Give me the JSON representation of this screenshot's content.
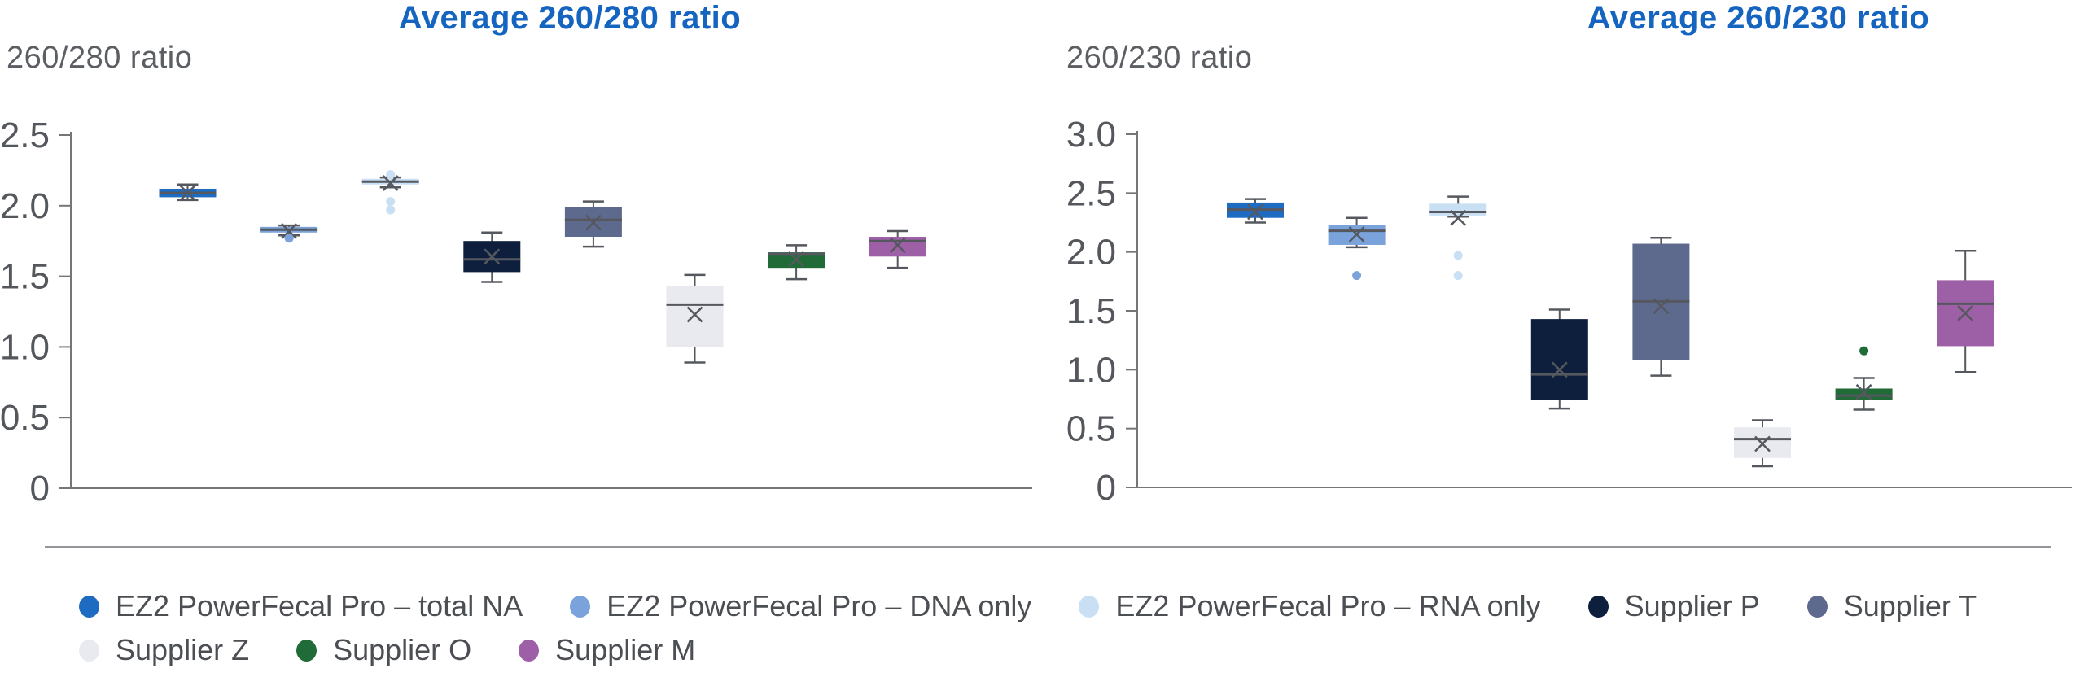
{
  "charts_header": {
    "left_title": "Average 260/280 ratio",
    "right_title": "Average 260/230 ratio"
  },
  "chart_data": [
    {
      "type": "boxplot",
      "title": "Average 260/280 ratio",
      "ylabel": "260/280 ratio",
      "ylim": [
        0,
        2.5
      ],
      "yticks": [
        2.5,
        2.0,
        1.5,
        1.0,
        0.5,
        0
      ],
      "ytick_labels": [
        "2.5",
        "2.0",
        "1.5",
        "1.0",
        "0.5",
        "0"
      ],
      "grid": false,
      "series": [
        {
          "name": "EZ2 PowerFecal Pro – total NA",
          "color": "#1e6bc2",
          "whisker_low": 2.04,
          "q1": 2.06,
          "median": 2.09,
          "q3": 2.12,
          "whisker_high": 2.15,
          "mean": 2.09,
          "outliers": []
        },
        {
          "name": "EZ2 PowerFecal Pro – DNA only",
          "color": "#7aa3dc",
          "whisker_low": 1.79,
          "q1": 1.81,
          "median": 1.83,
          "q3": 1.85,
          "whisker_high": 1.86,
          "mean": 1.82,
          "outliers": [
            1.77
          ]
        },
        {
          "name": "EZ2 PowerFecal Pro – RNA only",
          "color": "#c9dff3",
          "whisker_low": 2.13,
          "q1": 2.15,
          "median": 2.17,
          "q3": 2.19,
          "whisker_high": 2.2,
          "mean": 2.16,
          "outliers": [
            2.22,
            2.03,
            1.97
          ]
        },
        {
          "name": "Supplier P",
          "color": "#0d1f3d",
          "whisker_low": 1.46,
          "q1": 1.53,
          "median": 1.62,
          "q3": 1.75,
          "whisker_high": 1.81,
          "mean": 1.64,
          "outliers": []
        },
        {
          "name": "Supplier T",
          "color": "#5d6a8d",
          "whisker_low": 1.71,
          "q1": 1.78,
          "median": 1.9,
          "q3": 1.99,
          "whisker_high": 2.03,
          "mean": 1.88,
          "outliers": []
        },
        {
          "name": "Supplier Z",
          "color": "#e8eaef",
          "whisker_low": 0.89,
          "q1": 1.0,
          "median": 1.3,
          "q3": 1.43,
          "whisker_high": 1.51,
          "mean": 1.23,
          "outliers": []
        },
        {
          "name": "Supplier O",
          "color": "#206b38",
          "whisker_low": 1.48,
          "q1": 1.56,
          "median": 1.66,
          "q3": 1.67,
          "whisker_high": 1.72,
          "mean": 1.62,
          "outliers": []
        },
        {
          "name": "Supplier M",
          "color": "#9d5fa6",
          "whisker_low": 1.56,
          "q1": 1.64,
          "median": 1.75,
          "q3": 1.78,
          "whisker_high": 1.82,
          "mean": 1.72,
          "outliers": []
        }
      ]
    },
    {
      "type": "boxplot",
      "title": "Average 260/230 ratio",
      "ylabel": "260/230 ratio",
      "ylim": [
        0,
        3.0
      ],
      "yticks": [
        3.0,
        2.5,
        2.0,
        1.5,
        1.0,
        0.5,
        0
      ],
      "ytick_labels": [
        "3.0",
        "2.5",
        "2.0",
        "1.5",
        "1.0",
        "0.5",
        "0"
      ],
      "grid": false,
      "series": [
        {
          "name": "EZ2 PowerFecal Pro – total NA",
          "color": "#1e6bc2",
          "whisker_low": 2.25,
          "q1": 2.29,
          "median": 2.36,
          "q3": 2.42,
          "whisker_high": 2.45,
          "mean": 2.34,
          "outliers": []
        },
        {
          "name": "EZ2 PowerFecal Pro – DNA only",
          "color": "#7aa3dc",
          "whisker_low": 2.04,
          "q1": 2.06,
          "median": 2.18,
          "q3": 2.23,
          "whisker_high": 2.29,
          "mean": 2.15,
          "outliers": [
            1.8
          ]
        },
        {
          "name": "EZ2 PowerFecal Pro – RNA only",
          "color": "#c9dff3",
          "whisker_low": 2.3,
          "q1": 2.31,
          "median": 2.34,
          "q3": 2.41,
          "whisker_high": 2.47,
          "mean": 2.29,
          "outliers": [
            1.97,
            1.8
          ]
        },
        {
          "name": "Supplier P",
          "color": "#0d1f3d",
          "whisker_low": 0.67,
          "q1": 0.74,
          "median": 0.96,
          "q3": 1.43,
          "whisker_high": 1.51,
          "mean": 1.0,
          "outliers": []
        },
        {
          "name": "Supplier T",
          "color": "#5d6a8d",
          "whisker_low": 0.95,
          "q1": 1.08,
          "median": 1.58,
          "q3": 2.07,
          "whisker_high": 2.12,
          "mean": 1.54,
          "outliers": []
        },
        {
          "name": "Supplier Z",
          "color": "#e8eaef",
          "whisker_low": 0.18,
          "q1": 0.25,
          "median": 0.41,
          "q3": 0.51,
          "whisker_high": 0.57,
          "mean": 0.37,
          "outliers": []
        },
        {
          "name": "Supplier O",
          "color": "#206b38",
          "whisker_low": 0.66,
          "q1": 0.74,
          "median": 0.78,
          "q3": 0.84,
          "whisker_high": 0.93,
          "mean": 0.81,
          "outliers": [
            1.16
          ]
        },
        {
          "name": "Supplier M",
          "color": "#9d5fa6",
          "whisker_low": 0.98,
          "q1": 1.2,
          "median": 1.56,
          "q3": 1.76,
          "whisker_high": 2.01,
          "mean": 1.48,
          "outliers": []
        }
      ]
    }
  ],
  "legend": {
    "items": [
      {
        "label": "EZ2 PowerFecal Pro – total NA",
        "color": "#1e6bc2"
      },
      {
        "label": "EZ2 PowerFecal Pro – DNA only",
        "color": "#7aa3dc"
      },
      {
        "label": "EZ2 PowerFecal Pro – RNA only",
        "color": "#c9dff3"
      },
      {
        "label": "Supplier P",
        "color": "#0d1f3d"
      },
      {
        "label": "Supplier T",
        "color": "#5d6a8d"
      },
      {
        "label": "Supplier Z",
        "color": "#e8eaef"
      },
      {
        "label": "Supplier O",
        "color": "#206b38"
      },
      {
        "label": "Supplier M",
        "color": "#9d5fa6"
      }
    ]
  },
  "style_colors": {
    "title_blue": "#1565c0",
    "axis_gray": "#74767a",
    "tick_text_gray": "#54575c",
    "marker_gray": "#55585e"
  }
}
